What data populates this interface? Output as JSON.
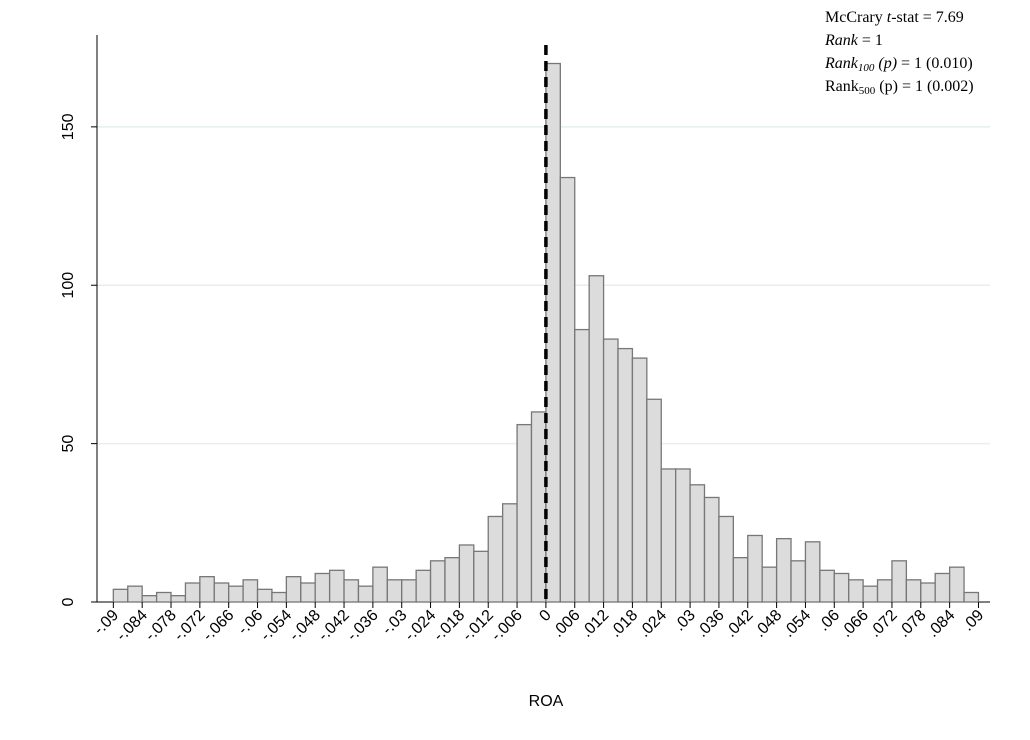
{
  "chart_data": {
    "type": "histogram",
    "bins": [
      -0.09,
      -0.087,
      -0.084,
      -0.081,
      -0.078,
      -0.075,
      -0.072,
      -0.069,
      -0.066,
      -0.063,
      -0.06,
      -0.057,
      -0.054,
      -0.051,
      -0.048,
      -0.045,
      -0.042,
      -0.039,
      -0.036,
      -0.033,
      -0.03,
      -0.027,
      -0.024,
      -0.021,
      -0.018,
      -0.015,
      -0.012,
      -0.009,
      -0.006,
      -0.003,
      0,
      0.003,
      0.006,
      0.009,
      0.012,
      0.015,
      0.018,
      0.021,
      0.024,
      0.027,
      0.03,
      0.033,
      0.036,
      0.039,
      0.042,
      0.045,
      0.048,
      0.051,
      0.054,
      0.057,
      0.06,
      0.063,
      0.066,
      0.069,
      0.072,
      0.075,
      0.078,
      0.081,
      0.084,
      0.087,
      0.09
    ],
    "counts": [
      4,
      5,
      2,
      3,
      2,
      6,
      8,
      6,
      5,
      7,
      4,
      3,
      8,
      6,
      9,
      10,
      7,
      5,
      11,
      7,
      7,
      10,
      13,
      14,
      18,
      16,
      27,
      31,
      56,
      60,
      170,
      134,
      86,
      103,
      83,
      80,
      77,
      64,
      42,
      42,
      37,
      33,
      27,
      14,
      21,
      11,
      20,
      13,
      19,
      10,
      9,
      7,
      5,
      7,
      13,
      7,
      6,
      9,
      11,
      3
    ],
    "color": "#dcdcdc",
    "edge_color": "#777777",
    "threshold": 0,
    "x_label": "ROA",
    "xlim": [
      -0.0934,
      0.0924
    ],
    "ylim": [
      0,
      179
    ],
    "xticks": [
      {
        "value": -0.09,
        "label": "-.09"
      },
      {
        "value": -0.084,
        "label": "-.084"
      },
      {
        "value": -0.078,
        "label": "-.078"
      },
      {
        "value": -0.072,
        "label": "-.072"
      },
      {
        "value": -0.066,
        "label": "-.066"
      },
      {
        "value": -0.06,
        "label": "-.06"
      },
      {
        "value": -0.054,
        "label": "-.054"
      },
      {
        "value": -0.048,
        "label": "-.048"
      },
      {
        "value": -0.042,
        "label": "-.042"
      },
      {
        "value": -0.036,
        "label": "-.036"
      },
      {
        "value": -0.03,
        "label": "-.03"
      },
      {
        "value": -0.024,
        "label": "-.024"
      },
      {
        "value": -0.018,
        "label": "-.018"
      },
      {
        "value": -0.012,
        "label": "-.012"
      },
      {
        "value": -0.006,
        "label": "-.006"
      },
      0,
      {
        "value": 0.006,
        "label": ".006"
      },
      {
        "value": 0.012,
        "label": ".012"
      },
      {
        "value": 0.018,
        "label": ".018"
      },
      {
        "value": 0.024,
        "label": ".024"
      },
      {
        "value": 0.03,
        "label": ".03"
      },
      {
        "value": 0.036,
        "label": ".036"
      },
      {
        "value": 0.042,
        "label": ".042"
      },
      {
        "value": 0.048,
        "label": ".048"
      },
      {
        "value": 0.054,
        "label": ".054"
      },
      {
        "value": 0.06,
        "label": ".06"
      },
      {
        "value": 0.066,
        "label": ".066"
      },
      {
        "value": 0.072,
        "label": ".072"
      },
      {
        "value": 0.078,
        "label": ".078"
      },
      {
        "value": 0.084,
        "label": ".084"
      },
      {
        "value": 0.09,
        "label": ".09"
      }
    ],
    "yticks": [
      0,
      50,
      100,
      150
    ],
    "grid": true,
    "annotation": [
      [
        {
          "text": "McCrary "
        },
        {
          "text": "t",
          "style": "italic"
        },
        {
          "text": "-stat = 7.69"
        }
      ],
      [
        {
          "text": "Rank",
          "style": "italic"
        },
        {
          "text": " = 1"
        }
      ],
      [
        {
          "text": "Rank",
          "style": "italic"
        },
        {
          "text": "100",
          "style": "italic-sub"
        },
        {
          "text": " (p)",
          "style": "italic"
        },
        {
          "text": " = 1 (0.010)"
        }
      ],
      [
        {
          "text": "Rank"
        },
        {
          "text": "500",
          "style": "sub"
        },
        {
          "text": " (p) = 1 (0.002)"
        }
      ]
    ]
  }
}
